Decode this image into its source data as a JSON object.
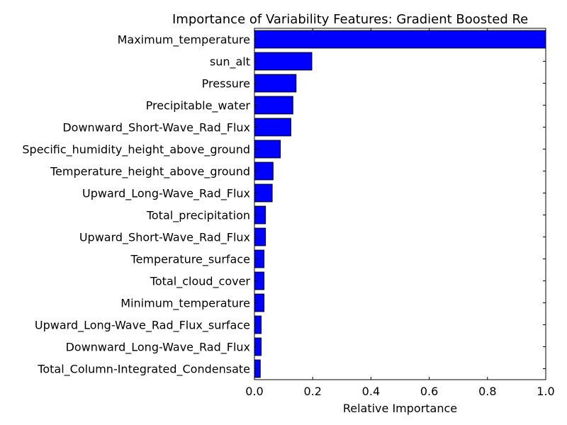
{
  "chart_data": {
    "type": "bar",
    "orientation": "horizontal",
    "title": "Importance of Variability Features: Gradient Boosted Re",
    "xlabel": "Relative Importance",
    "ylabel": "",
    "xlim": [
      0,
      1.0
    ],
    "x_ticks": [
      "0.0",
      "0.2",
      "0.4",
      "0.6",
      "0.8",
      "1.0"
    ],
    "bar_color": "#0000ff",
    "grid": false,
    "categories": [
      "Maximum_temperature",
      "sun_alt",
      "Pressure",
      "Precipitable_water",
      "Downward_Short-Wave_Rad_Flux",
      "Specific_humidity_height_above_ground",
      "Temperature_height_above_ground",
      "Upward_Long-Wave_Rad_Flux",
      "Total_precipitation",
      "Upward_Short-Wave_Rad_Flux",
      "Temperature_surface",
      "Total_cloud_cover",
      "Minimum_temperature",
      "Upward_Long-Wave_Rad_Flux_surface",
      "Downward_Long-Wave_Rad_Flux",
      "Total_Column-Integrated_Condensate"
    ],
    "values": [
      1.0,
      0.197,
      0.143,
      0.132,
      0.125,
      0.089,
      0.064,
      0.061,
      0.038,
      0.038,
      0.033,
      0.033,
      0.033,
      0.023,
      0.023,
      0.02
    ]
  }
}
